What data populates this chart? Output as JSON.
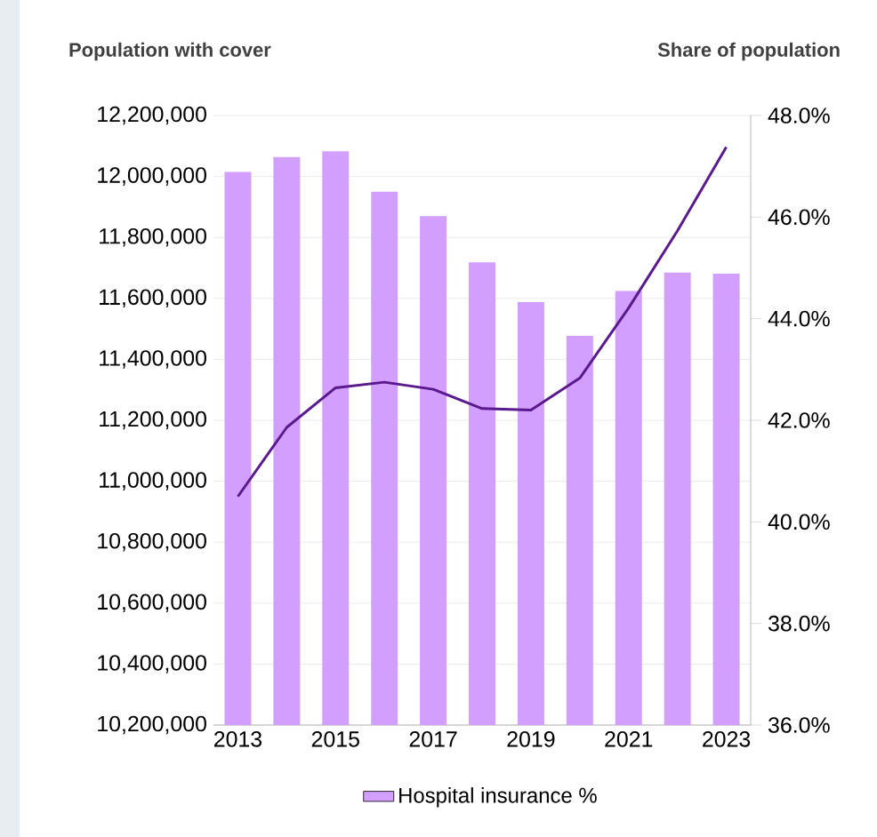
{
  "chart_data": {
    "type": "bar",
    "ylabel": "Population with cover",
    "y2label": "Share of population",
    "categories": [
      "2013",
      null,
      "2015",
      null,
      "2017",
      null,
      "2019",
      null,
      "2021",
      null,
      "2023"
    ],
    "series": [
      {
        "name": "Hospital insurance %",
        "color": "#d29ffe",
        "values": [
          12015000,
          12064000,
          12083000,
          11950000,
          11870000,
          11718000,
          11588000,
          11477000,
          11624000,
          11685000,
          11681000
        ]
      },
      {
        "type": "line",
        "axis": "y2",
        "color": "#5a1a8e",
        "values": [
          40.5,
          41.86,
          42.64,
          42.75,
          42.61,
          42.23,
          42.2,
          42.83,
          44.21,
          45.73,
          47.38
        ]
      }
    ],
    "ylim": [
      10200000,
      12200000
    ],
    "yticks": [
      {
        "value": 10200000,
        "label": "10,200,000"
      },
      {
        "value": 10400000,
        "label": "10,400,000"
      },
      {
        "value": 10600000,
        "label": "10,600,000"
      },
      {
        "value": 10800000,
        "label": "10,800,000"
      },
      {
        "value": 11000000,
        "label": "11,000,000"
      },
      {
        "value": 11200000,
        "label": "11,200,000"
      },
      {
        "value": 11400000,
        "label": "11,400,000"
      },
      {
        "value": 11600000,
        "label": "11,600,000"
      },
      {
        "value": 11800000,
        "label": "11,800,000"
      },
      {
        "value": 12000000,
        "label": "12,000,000"
      },
      {
        "value": 12200000,
        "label": "12,200,000"
      }
    ],
    "y2lim": [
      36,
      48
    ],
    "y2ticks": [
      {
        "value": 36,
        "label": "36.0%"
      },
      {
        "value": 38,
        "label": "38.0%"
      },
      {
        "value": 40,
        "label": "40.0%"
      },
      {
        "value": 42,
        "label": "42.0%"
      },
      {
        "value": 44,
        "label": "44.0%"
      },
      {
        "value": 46,
        "label": "46.0%"
      },
      {
        "value": 48,
        "label": "48.0%"
      }
    ],
    "grid": "y",
    "legend": "bottom",
    "marker": "none",
    "line_style": "solid"
  }
}
